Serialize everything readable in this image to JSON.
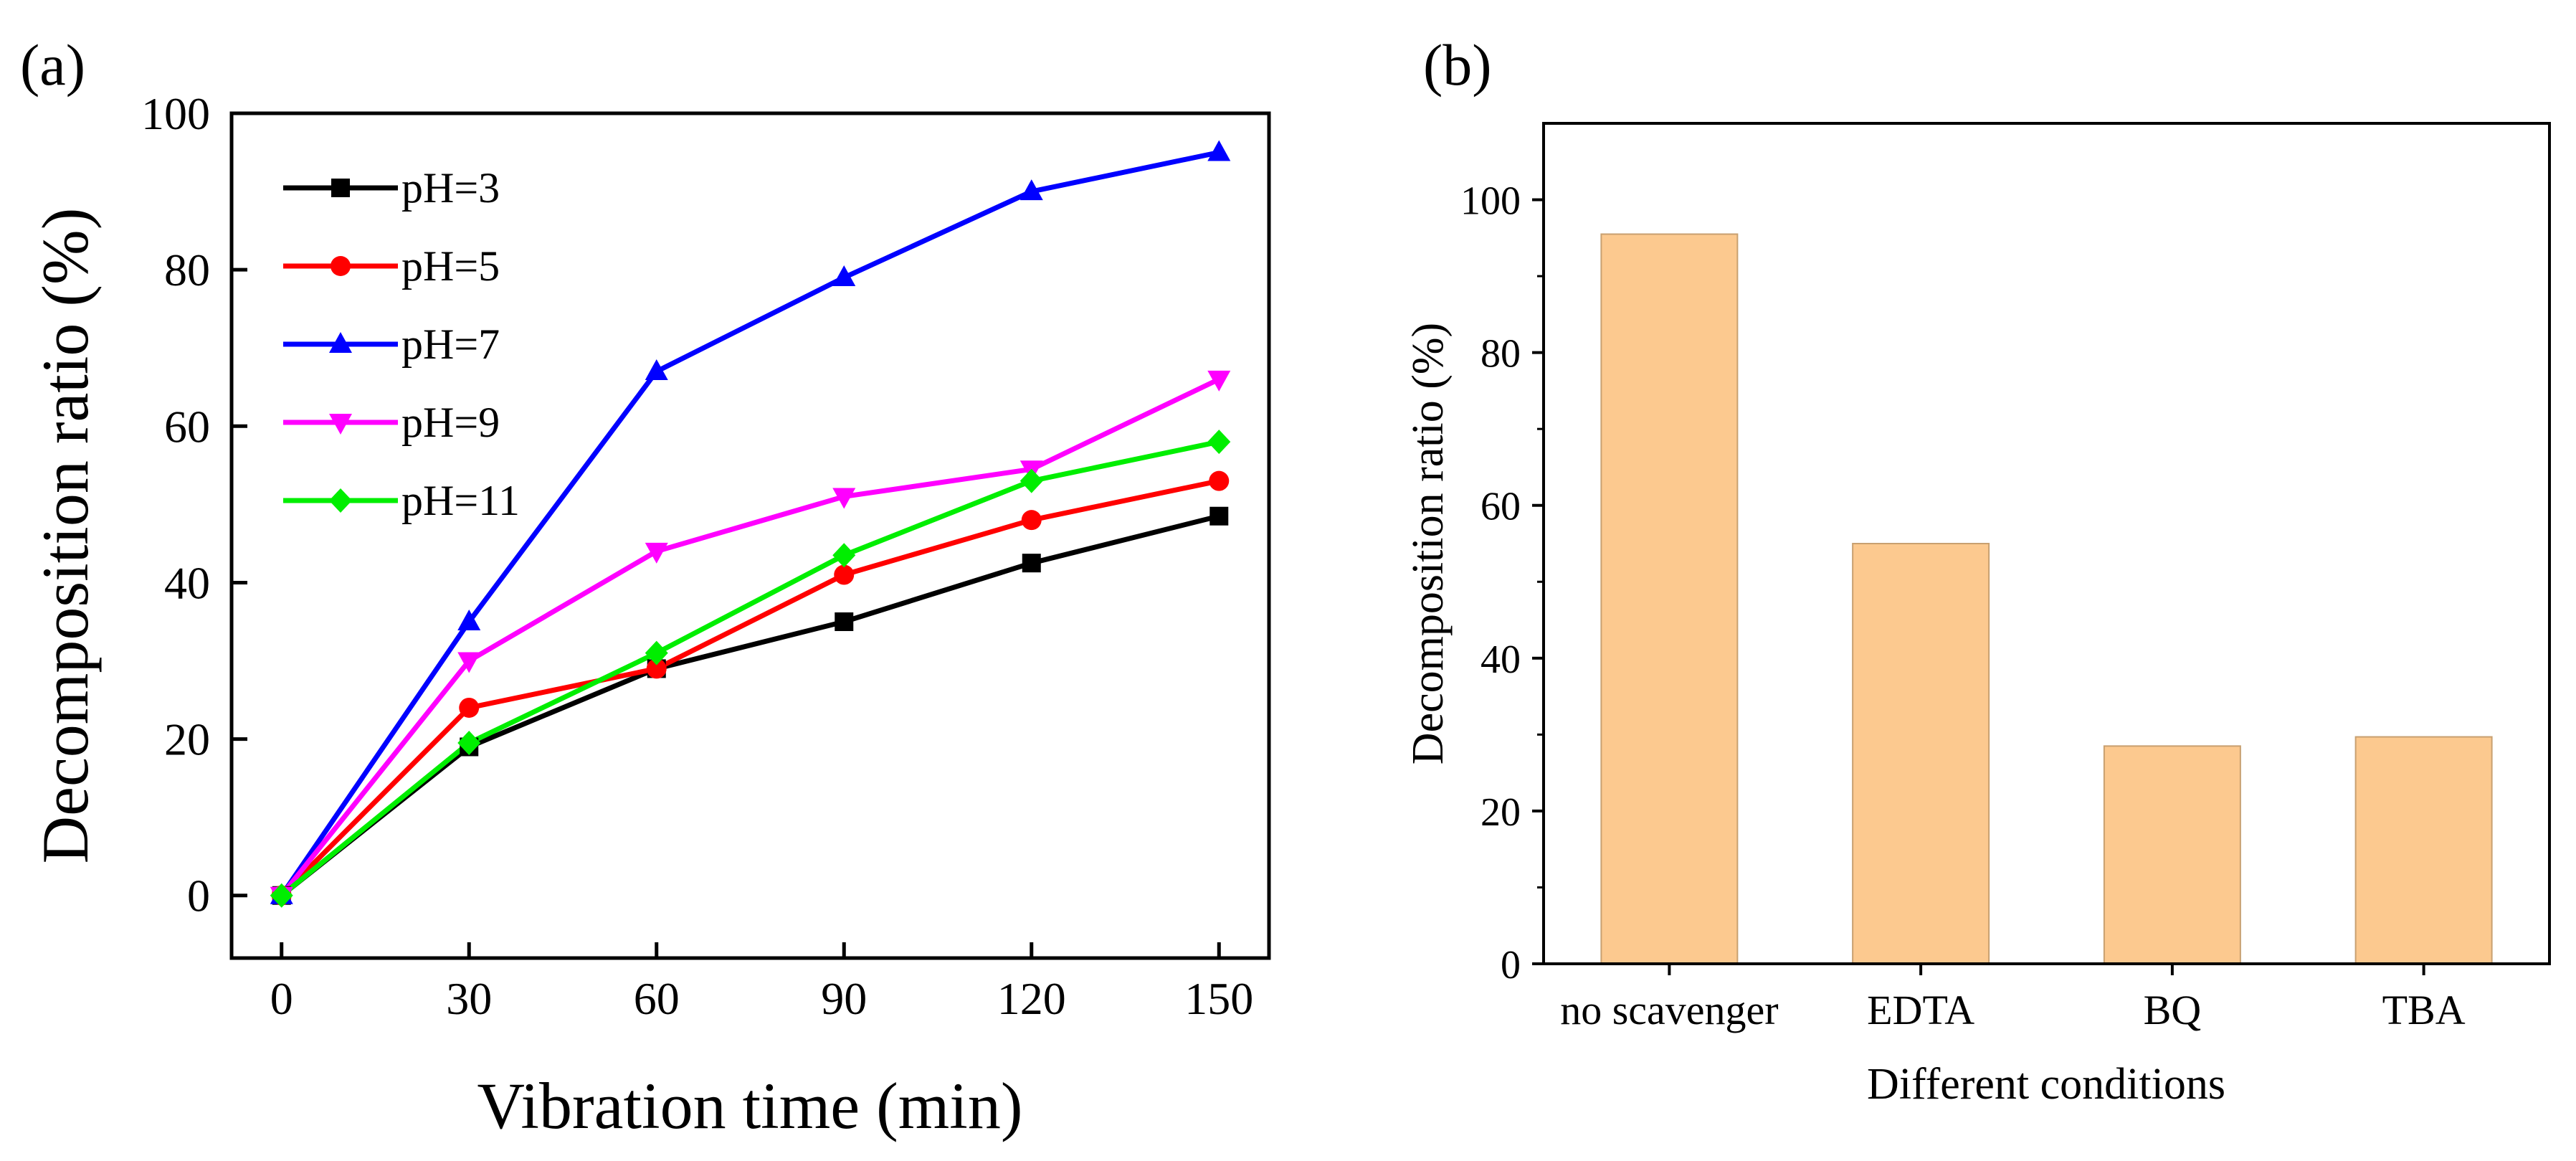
{
  "chart_data": [
    {
      "panel_label": "(a)",
      "type": "line",
      "title": "",
      "xlabel": "Vibration time (min)",
      "ylabel": "Decomposition ratio (%)",
      "x": [
        0,
        30,
        60,
        90,
        120,
        150
      ],
      "xticks": [
        "0",
        "30",
        "60",
        "90",
        "120",
        "150"
      ],
      "xlim": [
        -8,
        158
      ],
      "yticks": [
        "0",
        "20",
        "40",
        "60",
        "80",
        "100"
      ],
      "ylim": [
        -8,
        100
      ],
      "grid": false,
      "legend": "top-left",
      "series": [
        {
          "name": "pH=3",
          "color": "#000000",
          "marker": "square",
          "values": [
            0,
            19,
            29,
            35,
            42.5,
            48.5
          ]
        },
        {
          "name": "pH=5",
          "color": "#ff0000",
          "marker": "circle",
          "values": [
            0,
            24,
            29,
            41,
            48,
            53
          ]
        },
        {
          "name": "pH=7",
          "color": "#0000ff",
          "marker": "triangle-up",
          "values": [
            0,
            35,
            67,
            79,
            90,
            95
          ]
        },
        {
          "name": "pH=9",
          "color": "#ff00ff",
          "marker": "triangle-down",
          "values": [
            0,
            30,
            44,
            51,
            54.5,
            66
          ]
        },
        {
          "name": "pH=11",
          "color": "#00ee00",
          "marker": "diamond",
          "values": [
            0,
            19.5,
            31,
            43.5,
            53,
            58
          ]
        }
      ]
    },
    {
      "panel_label": "(b)",
      "type": "bar",
      "title": "",
      "xlabel": "Different conditions",
      "ylabel": "Decomposition ratio (%)",
      "categories": [
        "no scavenger",
        "EDTA",
        "BQ",
        "TBA"
      ],
      "values": [
        95.5,
        55,
        28.5,
        29.7
      ],
      "yticks": [
        "0",
        "20",
        "40",
        "60",
        "80",
        "100"
      ],
      "ylim": [
        0,
        110
      ],
      "bar_color": "#fcc98f",
      "bar_edge": "#c8a070",
      "grid": false
    }
  ]
}
